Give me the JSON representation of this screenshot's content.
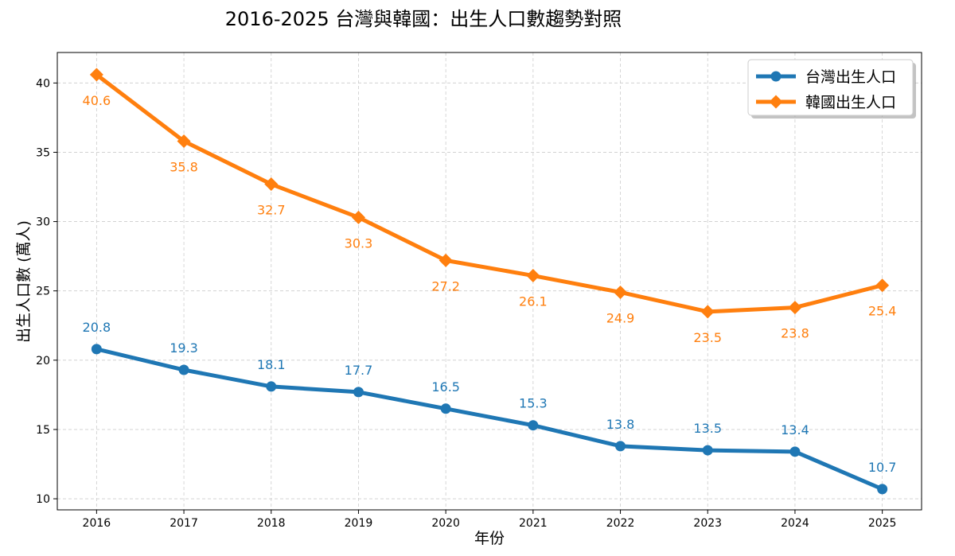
{
  "chart_data": {
    "type": "line",
    "title": "2016-2025 台灣與韓國：出生人口數趨勢對照",
    "xlabel": "年份",
    "ylabel": "出生人口數 (萬人)",
    "x": [
      2016,
      2017,
      2018,
      2019,
      2020,
      2021,
      2022,
      2023,
      2024,
      2025
    ],
    "xlim": [
      2015.55,
      2025.45
    ],
    "ylim": [
      9.2,
      42.2
    ],
    "yticks": [
      10,
      15,
      20,
      25,
      30,
      35,
      40
    ],
    "grid": true,
    "legend_position": "top-right",
    "series": [
      {
        "name": "台灣出生人口",
        "color": "#1f77b4",
        "marker": "circle",
        "values": [
          20.8,
          19.3,
          18.1,
          17.7,
          16.5,
          15.3,
          13.8,
          13.5,
          13.4,
          10.7
        ],
        "labels": [
          "20.8",
          "19.3",
          "18.1",
          "17.7",
          "16.5",
          "15.3",
          "13.8",
          "13.5",
          "13.4",
          "10.7"
        ],
        "label_position": "above"
      },
      {
        "name": "韓國出生人口",
        "color": "#ff7f0e",
        "marker": "diamond",
        "values": [
          40.6,
          35.8,
          32.7,
          30.3,
          27.2,
          26.1,
          24.9,
          23.5,
          23.8,
          25.4
        ],
        "labels": [
          "40.6",
          "35.8",
          "32.7",
          "30.3",
          "27.2",
          "26.1",
          "24.9",
          "23.5",
          "23.8",
          "25.4"
        ],
        "label_position": "below"
      }
    ]
  }
}
